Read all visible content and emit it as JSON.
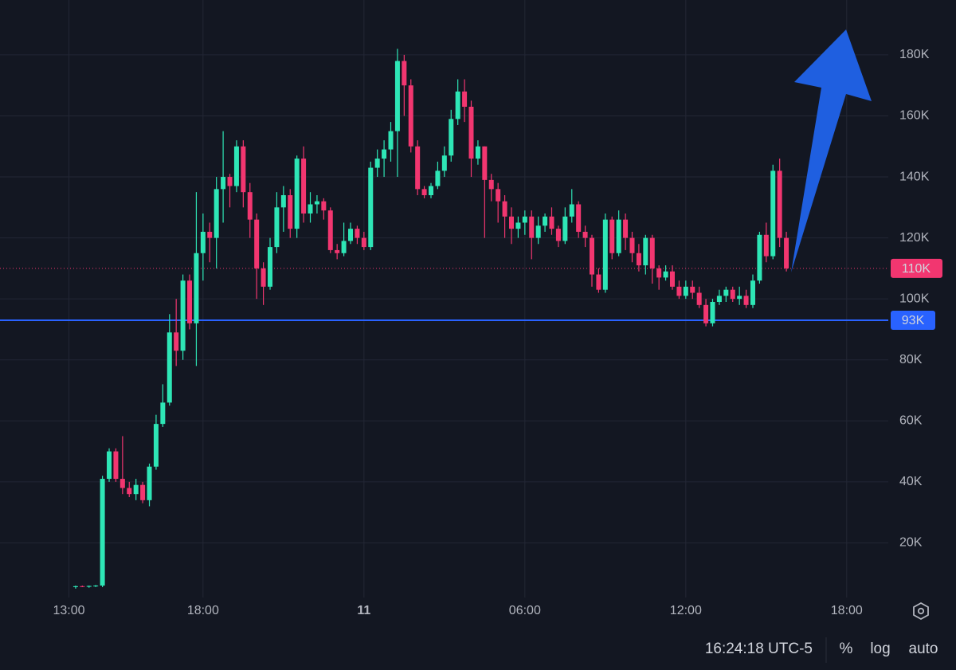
{
  "chart_data": {
    "type": "candlestick",
    "x": [
      13.25,
      13.5,
      13.75,
      14,
      14.25,
      14.5,
      14.75,
      15,
      15.25,
      15.5,
      15.75,
      16,
      16.25,
      16.5,
      16.75,
      17,
      17.25,
      17.5,
      17.75,
      18,
      18.25,
      18.5,
      18.75,
      19,
      19.25,
      19.5,
      19.75,
      20,
      20.25,
      20.5,
      20.75,
      21,
      21.25,
      21.5,
      21.75,
      22,
      22.25,
      22.5,
      22.75,
      23,
      23.25,
      23.5,
      23.75,
      24,
      24.25,
      24.5,
      24.75,
      25,
      25.25,
      25.5,
      25.75,
      26,
      26.25,
      26.5,
      26.75,
      27,
      27.25,
      27.5,
      27.75,
      28,
      28.25,
      28.5,
      28.75,
      29,
      29.25,
      29.5,
      29.75,
      30,
      30.25,
      30.5,
      30.75,
      31,
      31.25,
      31.5,
      31.75,
      32,
      32.25,
      32.5,
      32.75,
      33,
      33.25,
      33.5,
      33.75,
      34,
      34.25,
      34.5,
      34.75,
      35,
      35.25,
      35.5,
      35.75,
      36,
      36.25,
      36.5,
      36.75,
      37,
      37.25,
      37.5,
      37.75,
      38,
      38.25,
      38.5,
      38.75,
      39,
      39.25,
      39.5,
      39.75
    ],
    "open": [
      5.5,
      5.8,
      5.6,
      5.9,
      6,
      41,
      50,
      41,
      38,
      36,
      39,
      34,
      45,
      59,
      66,
      89,
      83,
      106,
      92,
      115,
      122,
      120,
      136,
      140,
      137,
      150,
      135,
      126,
      110,
      104,
      117,
      130,
      134,
      123,
      146,
      128,
      131,
      132,
      129,
      116,
      115,
      119,
      123,
      120,
      117,
      143,
      146,
      149,
      155,
      178,
      170,
      150,
      136,
      134,
      137,
      142,
      147,
      159,
      168,
      163,
      146,
      150,
      139,
      136,
      132,
      127,
      123,
      125,
      127,
      120,
      124,
      127,
      123,
      119,
      127,
      131,
      122,
      120,
      108,
      103,
      126,
      115,
      126,
      120,
      115,
      111,
      120,
      110,
      107,
      109,
      104,
      101,
      104,
      102,
      98,
      92,
      99,
      101,
      103,
      100,
      101,
      98,
      106,
      121,
      114,
      142,
      120
    ],
    "high": [
      6,
      6,
      6,
      6.2,
      42,
      51,
      51,
      55,
      40,
      41,
      40,
      46,
      62,
      72,
      95,
      100,
      108,
      108,
      135,
      128,
      125,
      140,
      155,
      141,
      152,
      152,
      138,
      128,
      112,
      120,
      135,
      137,
      136,
      147,
      150,
      135,
      134,
      133,
      130,
      118,
      125,
      125,
      124,
      122,
      145,
      149,
      152,
      158,
      182,
      180,
      172,
      152,
      137,
      138,
      145,
      150,
      162,
      172,
      172,
      165,
      152,
      150,
      141,
      138,
      134,
      130,
      127,
      129,
      129,
      127,
      128,
      130,
      124,
      130,
      136,
      132,
      124,
      121,
      110,
      128,
      127,
      129,
      128,
      122,
      118,
      121,
      121,
      111,
      111,
      111,
      106,
      106,
      106,
      104,
      100,
      100,
      103,
      104,
      104,
      104,
      103,
      108,
      122,
      125,
      144,
      146,
      122
    ],
    "low": [
      5,
      5.5,
      5.3,
      5.5,
      5.5,
      40,
      40,
      36,
      35,
      34,
      33,
      32,
      44,
      58,
      65,
      78,
      80,
      90,
      78,
      106,
      112,
      110,
      125,
      130,
      135,
      130,
      120,
      100,
      98,
      103,
      115,
      122,
      120,
      120,
      125,
      125,
      128,
      126,
      115,
      113,
      114,
      118,
      118,
      116,
      116,
      140,
      140,
      145,
      140,
      160,
      148,
      134,
      133,
      133,
      136,
      140,
      145,
      157,
      158,
      140,
      144,
      120,
      132,
      125,
      120,
      118,
      120,
      121,
      113,
      118,
      122,
      121,
      117,
      118,
      125,
      120,
      117,
      104,
      102,
      102,
      113,
      114,
      116,
      112,
      109,
      108,
      105,
      103,
      106,
      103,
      100,
      100,
      100,
      97,
      91,
      91,
      98,
      99,
      99,
      98,
      97,
      97,
      105,
      112,
      113,
      117,
      109
    ],
    "close": [
      5.8,
      5.6,
      5.9,
      6,
      41,
      50,
      41,
      38,
      36,
      39,
      34,
      45,
      59,
      66,
      89,
      83,
      106,
      92,
      115,
      122,
      120,
      136,
      140,
      137,
      150,
      135,
      126,
      110,
      104,
      117,
      130,
      134,
      123,
      146,
      128,
      131,
      132,
      129,
      116,
      115,
      119,
      123,
      120,
      117,
      143,
      146,
      149,
      155,
      178,
      170,
      150,
      136,
      134,
      137,
      142,
      147,
      159,
      168,
      163,
      146,
      150,
      139,
      136,
      132,
      127,
      123,
      125,
      127,
      120,
      124,
      127,
      123,
      119,
      127,
      131,
      122,
      120,
      108,
      103,
      126,
      115,
      126,
      120,
      115,
      111,
      120,
      110,
      107,
      109,
      104,
      101,
      104,
      102,
      98,
      92,
      99,
      101,
      103,
      100,
      101,
      98,
      106,
      121,
      114,
      142,
      120,
      110
    ],
    "up_color": "#2ee6b6",
    "down_color": "#f23670",
    "xlim": [
      10.43,
      43.55
    ],
    "ylim": [
      0,
      198
    ],
    "xticks": [
      {
        "value": 13,
        "label": "13:00"
      },
      {
        "value": 18,
        "label": "18:00"
      },
      {
        "value": 24,
        "label": "11"
      },
      {
        "value": 30,
        "label": "06:00"
      },
      {
        "value": 36,
        "label": "12:00"
      },
      {
        "value": 42,
        "label": "18:00"
      }
    ],
    "yticks": [
      {
        "value": 20,
        "label": "20K"
      },
      {
        "value": 40,
        "label": "40K"
      },
      {
        "value": 60,
        "label": "60K"
      },
      {
        "value": 80,
        "label": "80K"
      },
      {
        "value": 100,
        "label": "100K"
      },
      {
        "value": 120,
        "label": "120K"
      },
      {
        "value": 140,
        "label": "140K"
      },
      {
        "value": 160,
        "label": "160K"
      },
      {
        "value": 180,
        "label": "180K"
      }
    ],
    "grid": true,
    "last_price": {
      "value": 110,
      "label": "110K",
      "color": "#f23670"
    },
    "hline": {
      "value": 93,
      "label": "93K",
      "color": "#2962ff"
    }
  },
  "toolbar": {
    "time": "16:24:18 UTC-5",
    "buttons": [
      "%",
      "log",
      "auto"
    ]
  }
}
